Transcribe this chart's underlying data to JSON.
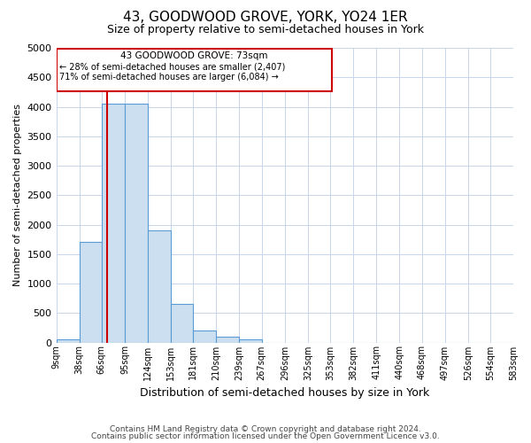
{
  "title": "43, GOODWOOD GROVE, YORK, YO24 1ER",
  "subtitle": "Size of property relative to semi-detached houses in York",
  "xlabel": "Distribution of semi-detached houses by size in York",
  "ylabel": "Number of semi-detached properties",
  "footer1": "Contains HM Land Registry data © Crown copyright and database right 2024.",
  "footer2": "Contains public sector information licensed under the Open Government Licence v3.0.",
  "property_size": 73,
  "annotation_title": "43 GOODWOOD GROVE: 73sqm",
  "annotation_line2": "← 28% of semi-detached houses are smaller (2,407)",
  "annotation_line3": "71% of semi-detached houses are larger (6,084) →",
  "bar_color": "#ccdff0",
  "bar_edge_color": "#5b9bd5",
  "red_line_color": "#cc0000",
  "bin_edges": [
    9,
    38,
    66,
    95,
    124,
    153,
    181,
    210,
    239,
    267,
    296,
    325,
    353,
    382,
    411,
    440,
    468,
    497,
    526,
    554,
    583
  ],
  "bin_labels": [
    "9sqm",
    "38sqm",
    "66sqm",
    "95sqm",
    "124sqm",
    "153sqm",
    "181sqm",
    "210sqm",
    "239sqm",
    "267sqm",
    "296sqm",
    "325sqm",
    "353sqm",
    "382sqm",
    "411sqm",
    "440sqm",
    "468sqm",
    "497sqm",
    "526sqm",
    "554sqm",
    "583sqm"
  ],
  "counts": [
    50,
    1700,
    4050,
    4050,
    1900,
    650,
    210,
    100,
    50,
    0,
    0,
    0,
    0,
    0,
    0,
    0,
    0,
    0,
    0,
    0
  ],
  "ylim": [
    0,
    5000
  ],
  "yticks": [
    0,
    500,
    1000,
    1500,
    2000,
    2500,
    3000,
    3500,
    4000,
    4500,
    5000
  ],
  "background_color": "#ffffff",
  "grid_color": "#c8d4e8"
}
